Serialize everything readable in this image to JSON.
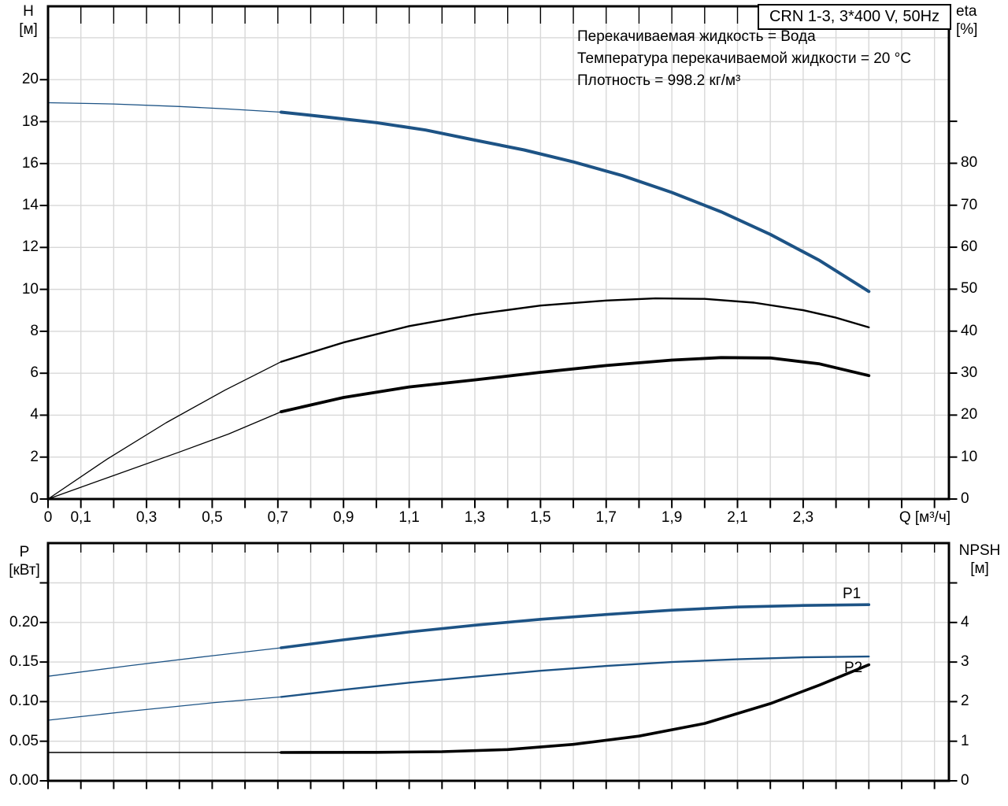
{
  "title_box": {
    "label": "CRN 1-3, 3*400 V, 50Hz"
  },
  "annotations": [
    "Перекачиваемая жидкость = Вода",
    "Температура перекачиваемой жидкости = 20 °C",
    "Плотность = 998.2 кг/м³"
  ],
  "colors": {
    "curve_blue": "#1d5385",
    "curve_black": "#000000",
    "grid": "#d8d8d8",
    "frame": "#000000",
    "background": "#ffffff",
    "text": "#000000"
  },
  "chart_data": [
    {
      "type": "line",
      "name": "head-efficiency-chart",
      "x_axis": {
        "label": "Q [м³/ч]",
        "min": 0,
        "max": 2.744,
        "tick_step": 0.1,
        "tick_labels": [
          {
            "v": 0,
            "label": "0"
          },
          {
            "v": 0.1,
            "label": "0,1"
          },
          {
            "v": 0.3,
            "label": "0,3"
          },
          {
            "v": 0.5,
            "label": "0,5"
          },
          {
            "v": 0.7,
            "label": "0,7"
          },
          {
            "v": 0.9,
            "label": "0,9"
          },
          {
            "v": 1.1,
            "label": "1,1"
          },
          {
            "v": 1.3,
            "label": "1,3"
          },
          {
            "v": 1.5,
            "label": "1,5"
          },
          {
            "v": 1.7,
            "label": "1,7"
          },
          {
            "v": 1.9,
            "label": "1,9"
          },
          {
            "v": 2.1,
            "label": "2,1"
          },
          {
            "v": 2.3,
            "label": "2,3"
          }
        ]
      },
      "y_left": {
        "name": "H",
        "unit": "[м]",
        "min": 0,
        "max": 23.5,
        "ticks": [
          {
            "v": 0,
            "label": "0"
          },
          {
            "v": 2,
            "label": "2"
          },
          {
            "v": 4,
            "label": "4"
          },
          {
            "v": 6,
            "label": "6"
          },
          {
            "v": 8,
            "label": "8"
          },
          {
            "v": 10,
            "label": "10"
          },
          {
            "v": 12,
            "label": "12"
          },
          {
            "v": 14,
            "label": "14"
          },
          {
            "v": 16,
            "label": "16"
          },
          {
            "v": 18,
            "label": "18"
          },
          {
            "v": 20,
            "label": "20"
          }
        ],
        "grid": [
          2,
          4,
          6,
          8,
          10,
          12,
          14,
          16,
          18,
          20,
          22
        ]
      },
      "y_right": {
        "name": "eta",
        "unit": "[%]",
        "min": 0,
        "max": 117.4,
        "ticks": [
          {
            "v": 0,
            "label": "0"
          },
          {
            "v": 10,
            "label": "10"
          },
          {
            "v": 20,
            "label": "20"
          },
          {
            "v": 30,
            "label": "30"
          },
          {
            "v": 40,
            "label": "40"
          },
          {
            "v": 50,
            "label": "50"
          },
          {
            "v": 60,
            "label": "60"
          },
          {
            "v": 70,
            "label": "70"
          },
          {
            "v": 80,
            "label": "80"
          },
          {
            "v": 90,
            "label": ""
          }
        ]
      },
      "series": [
        {
          "name": "H-curve",
          "color": "blue",
          "axis": "left",
          "segments": [
            {
              "width": 1.3,
              "points": [
                [
                  0,
                  18.9
                ],
                [
                  0.2,
                  18.84
                ],
                [
                  0.4,
                  18.72
                ],
                [
                  0.55,
                  18.6
                ],
                [
                  0.71,
                  18.45
                ]
              ]
            },
            {
              "width": 4,
              "points": [
                [
                  0.71,
                  18.45
                ],
                [
                  0.85,
                  18.22
                ],
                [
                  1.0,
                  17.95
                ],
                [
                  1.15,
                  17.6
                ],
                [
                  1.3,
                  17.12
                ],
                [
                  1.45,
                  16.65
                ],
                [
                  1.6,
                  16.08
                ],
                [
                  1.75,
                  15.42
                ],
                [
                  1.9,
                  14.62
                ],
                [
                  2.05,
                  13.7
                ],
                [
                  2.2,
                  12.62
                ],
                [
                  2.35,
                  11.38
                ],
                [
                  2.5,
                  9.9
                ]
              ]
            }
          ]
        },
        {
          "name": "eta-curve-upper",
          "color": "black",
          "axis": "right",
          "segments": [
            {
              "width": 1.3,
              "points": [
                [
                  0,
                  0
                ],
                [
                  0.18,
                  9.5
                ],
                [
                  0.36,
                  18.2
                ],
                [
                  0.54,
                  26
                ],
                [
                  0.71,
                  32.7
                ]
              ]
            },
            {
              "width": 2.4,
              "points": [
                [
                  0.71,
                  32.7
                ],
                [
                  0.9,
                  37.3
                ],
                [
                  1.1,
                  41.2
                ],
                [
                  1.3,
                  44
                ],
                [
                  1.5,
                  46.1
                ],
                [
                  1.7,
                  47.3
                ],
                [
                  1.85,
                  47.8
                ],
                [
                  2.0,
                  47.7
                ],
                [
                  2.15,
                  46.8
                ],
                [
                  2.3,
                  45
                ],
                [
                  2.4,
                  43.2
                ],
                [
                  2.5,
                  40.9
                ]
              ]
            }
          ]
        },
        {
          "name": "eta-curve-lower",
          "color": "black",
          "axis": "right",
          "segments": [
            {
              "width": 1.3,
              "points": [
                [
                  0,
                  0
                ],
                [
                  0.2,
                  5.6
                ],
                [
                  0.4,
                  11.2
                ],
                [
                  0.55,
                  15.5
                ],
                [
                  0.71,
                  20.8
                ]
              ]
            },
            {
              "width": 3.8,
              "points": [
                [
                  0.71,
                  20.8
                ],
                [
                  0.9,
                  24.2
                ],
                [
                  1.1,
                  26.7
                ],
                [
                  1.3,
                  28.4
                ],
                [
                  1.5,
                  30.2
                ],
                [
                  1.7,
                  31.8
                ],
                [
                  1.9,
                  33.1
                ],
                [
                  2.05,
                  33.7
                ],
                [
                  2.2,
                  33.6
                ],
                [
                  2.35,
                  32.2
                ],
                [
                  2.5,
                  29.4
                ]
              ]
            }
          ]
        }
      ]
    },
    {
      "type": "line",
      "name": "power-npsh-chart",
      "x_axis": {
        "label": "",
        "min": 0,
        "max": 2.744,
        "tick_step": 0.1,
        "tick_labels": []
      },
      "y_left": {
        "name": "P",
        "unit": "[кВт]",
        "min": 0,
        "max": 0.3002,
        "ticks": [
          {
            "v": 0,
            "label": "0.00"
          },
          {
            "v": 0.05,
            "label": "0.05"
          },
          {
            "v": 0.1,
            "label": "0.10"
          },
          {
            "v": 0.15,
            "label": "0.15"
          },
          {
            "v": 0.2,
            "label": "0.20"
          },
          {
            "v": 0.25,
            "label": ""
          }
        ],
        "grid": [
          0.05,
          0.1,
          0.15,
          0.2,
          0.25
        ]
      },
      "y_right": {
        "name": "NPSH",
        "unit": "[м]",
        "min": 0,
        "max": 6.005,
        "ticks": [
          {
            "v": 0,
            "label": "0"
          },
          {
            "v": 1,
            "label": "1"
          },
          {
            "v": 2,
            "label": "2"
          },
          {
            "v": 3,
            "label": "3"
          },
          {
            "v": 4,
            "label": "4"
          },
          {
            "v": 5,
            "label": ""
          }
        ]
      },
      "series": [
        {
          "name": "P1-curve",
          "label": "P1",
          "color": "blue",
          "axis": "left",
          "segments": [
            {
              "width": 1.3,
              "points": [
                [
                  0,
                  0.132
                ],
                [
                  0.25,
                  0.1455
                ],
                [
                  0.5,
                  0.158
                ],
                [
                  0.71,
                  0.168
                ]
              ]
            },
            {
              "width": 3.6,
              "points": [
                [
                  0.71,
                  0.168
                ],
                [
                  0.9,
                  0.178
                ],
                [
                  1.1,
                  0.188
                ],
                [
                  1.3,
                  0.1965
                ],
                [
                  1.5,
                  0.204
                ],
                [
                  1.7,
                  0.21
                ],
                [
                  1.9,
                  0.2155
                ],
                [
                  2.1,
                  0.2195
                ],
                [
                  2.3,
                  0.2215
                ],
                [
                  2.5,
                  0.2225
                ]
              ]
            }
          ]
        },
        {
          "name": "P2-curve",
          "label": "P2",
          "color": "blue",
          "axis": "left",
          "segments": [
            {
              "width": 1.3,
              "points": [
                [
                  0,
                  0.0765
                ],
                [
                  0.25,
                  0.088
                ],
                [
                  0.5,
                  0.0985
                ],
                [
                  0.71,
                  0.106
                ]
              ]
            },
            {
              "width": 2.4,
              "points": [
                [
                  0.71,
                  0.106
                ],
                [
                  0.9,
                  0.115
                ],
                [
                  1.1,
                  0.124
                ],
                [
                  1.3,
                  0.1315
                ],
                [
                  1.5,
                  0.139
                ],
                [
                  1.7,
                  0.145
                ],
                [
                  1.9,
                  0.15
                ],
                [
                  2.1,
                  0.1535
                ],
                [
                  2.3,
                  0.156
                ],
                [
                  2.5,
                  0.157
                ]
              ]
            }
          ]
        },
        {
          "name": "NPSH-curve",
          "color": "black",
          "axis": "right",
          "segments": [
            {
              "width": 1.5,
              "points": [
                [
                  0,
                  0.715
                ],
                [
                  0.35,
                  0.715
                ],
                [
                  0.71,
                  0.715
                ]
              ]
            },
            {
              "width": 3.6,
              "points": [
                [
                  0.71,
                  0.715
                ],
                [
                  1.0,
                  0.72
                ],
                [
                  1.2,
                  0.735
                ],
                [
                  1.4,
                  0.79
                ],
                [
                  1.6,
                  0.92
                ],
                [
                  1.8,
                  1.13
                ],
                [
                  2.0,
                  1.45
                ],
                [
                  2.2,
                  1.95
                ],
                [
                  2.35,
                  2.42
                ],
                [
                  2.5,
                  2.93
                ]
              ]
            }
          ]
        }
      ]
    }
  ]
}
